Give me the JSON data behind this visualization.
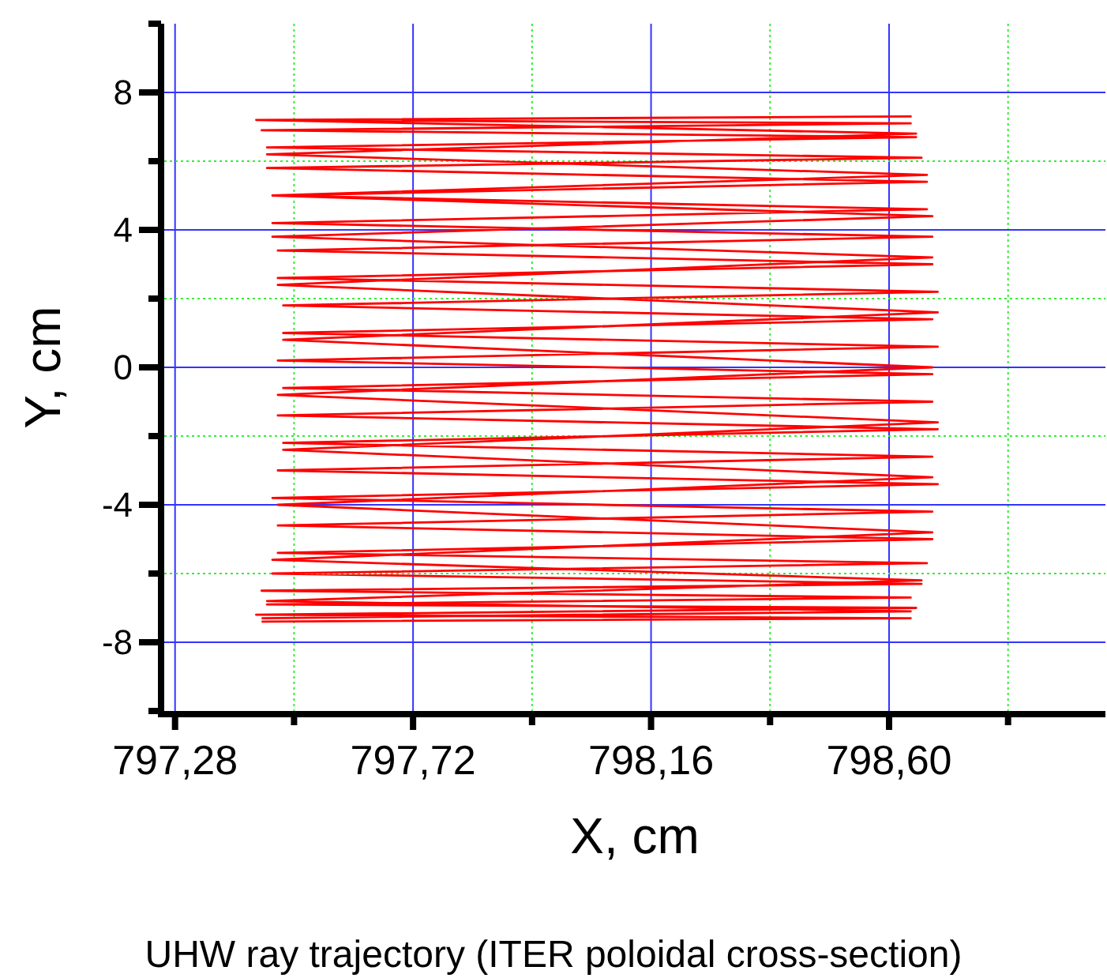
{
  "chart_data": {
    "type": "line",
    "xlabel": "X, cm",
    "ylabel": "Y, cm",
    "annotations": [
      "UHW ray trajectory (ITER poloidal cross-section)"
    ],
    "xlim": [
      797.26,
      799.0
    ],
    "ylim": [
      -10,
      10
    ],
    "xticks": [
      {
        "value": 797.28,
        "label": "797,28"
      },
      {
        "value": 797.5,
        "label": null
      },
      {
        "value": 797.72,
        "label": "797,72"
      },
      {
        "value": 797.94,
        "label": null
      },
      {
        "value": 798.16,
        "label": "798,16"
      },
      {
        "value": 798.38,
        "label": null
      },
      {
        "value": 798.6,
        "label": "798,60"
      },
      {
        "value": 798.82,
        "label": null
      }
    ],
    "yticks": [
      {
        "value": -10,
        "label": null
      },
      -8,
      {
        "value": -6,
        "label": null
      },
      -4,
      {
        "value": -2,
        "label": null
      },
      0,
      {
        "value": 2,
        "label": null
      },
      4,
      {
        "value": 6,
        "label": null
      },
      8,
      {
        "value": 10,
        "label": null
      }
    ],
    "grid": true,
    "marker": "none",
    "line_style": "solid",
    "series": [
      {
        "color": "#ff0000",
        "x": [
          797.44,
          798.64,
          797.43,
          798.65,
          797.45,
          798.64,
          797.44,
          798.66,
          797.46,
          798.67,
          797.47,
          798.68,
          797.47,
          798.68,
          797.46,
          798.69,
          797.47,
          798.68,
          797.48,
          798.69,
          797.47,
          798.68,
          797.48,
          798.68,
          797.47,
          798.69,
          797.48,
          798.68,
          797.48,
          798.69,
          797.47,
          798.68,
          797.47,
          798.68,
          797.46,
          798.67,
          797.46,
          798.67,
          797.45,
          798.66,
          797.45,
          798.65,
          797.44,
          798.64,
          797.43,
          798.64,
          797.43,
          798.65,
          797.45,
          798.67,
          797.46,
          798.68,
          797.46,
          798.68,
          797.47,
          798.69,
          797.48,
          798.68,
          797.47,
          798.69,
          797.48,
          798.68,
          797.47,
          798.68,
          797.46,
          798.66,
          797.45,
          798.64,
          797.44
        ],
        "values": [
          -7.4,
          -7.3,
          -7.2,
          -7.0,
          -6.9,
          -6.7,
          -6.5,
          -6.3,
          -6.0,
          -5.7,
          -5.4,
          -5.0,
          -4.6,
          -4.2,
          -3.8,
          -3.4,
          -3.0,
          -2.6,
          -2.2,
          -1.8,
          -1.4,
          -1.0,
          -0.6,
          -0.2,
          0.2,
          0.6,
          1.0,
          1.4,
          1.8,
          2.2,
          2.6,
          3.0,
          3.4,
          3.8,
          4.2,
          4.6,
          5.0,
          5.4,
          5.8,
          6.1,
          6.4,
          6.7,
          6.9,
          7.1,
          7.2,
          7.3,
          7.2,
          6.8,
          6.2,
          5.6,
          5.0,
          4.4,
          3.8,
          3.2,
          2.4,
          1.6,
          0.8,
          0.0,
          -0.8,
          -1.6,
          -2.4,
          -3.2,
          -4.0,
          -4.8,
          -5.6,
          -6.2,
          -6.8,
          -7.1,
          -7.3
        ]
      }
    ]
  }
}
